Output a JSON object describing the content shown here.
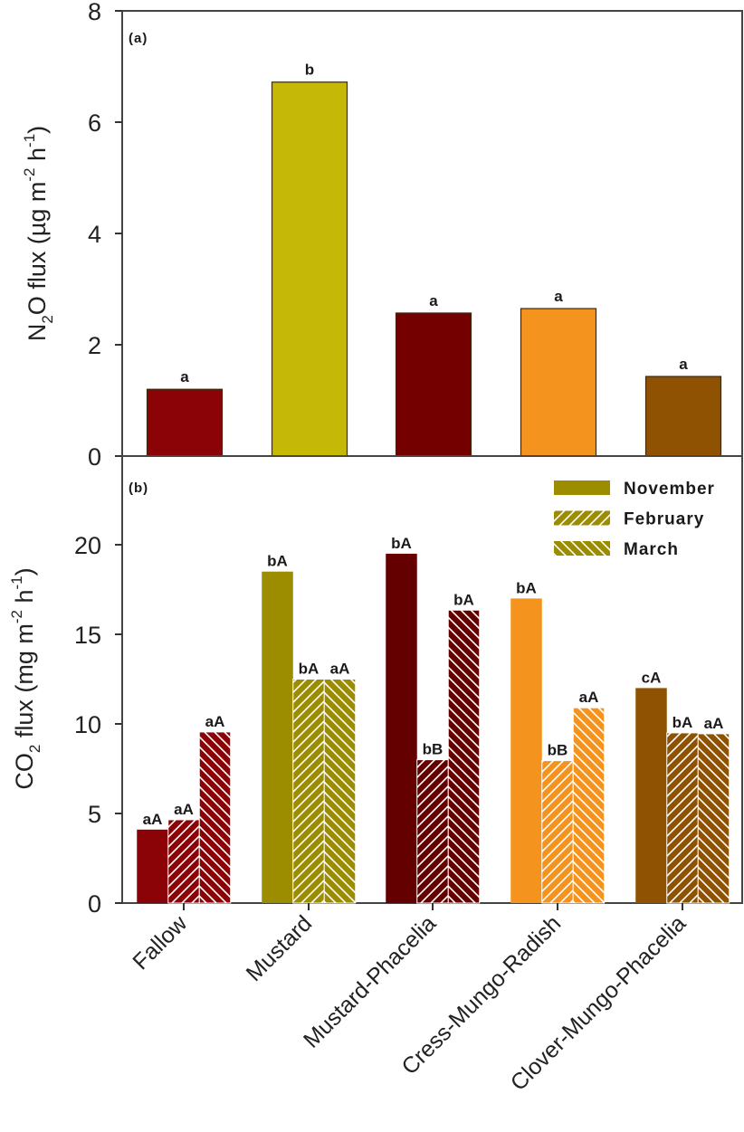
{
  "chart_data": [
    {
      "type": "bar",
      "panel_label": "(a)",
      "title": "",
      "xlabel": "",
      "ylabel": "N2O flux (µg m-2 h-1)",
      "ylabel_parts": {
        "pre": "N",
        "sub": "2",
        "mid": "O flux (µg m",
        "sup1": "-2",
        "mid2": " h",
        "sup2": "-1",
        "post": ")"
      },
      "ylim": [
        0,
        8
      ],
      "yticks": [
        0,
        2,
        4,
        6,
        8
      ],
      "grid": false,
      "categories": [
        "Fallow",
        "Mustard",
        "Mustard-Phacelia",
        "Cress-Mungo-Radish",
        "Clover-Mungo-Phacelia"
      ],
      "values": [
        1.2,
        6.72,
        2.57,
        2.65,
        1.43
      ],
      "labels": [
        "a",
        "b",
        "a",
        "a",
        "a"
      ],
      "colors": [
        "#8b0306",
        "#c5b806",
        "#740000",
        "#f5931f",
        "#8f5203"
      ]
    },
    {
      "type": "bar",
      "panel_label": "(b)",
      "title": "",
      "xlabel": "",
      "ylabel": "CO2 flux (mg m-2 h-1)",
      "ylabel_parts": {
        "pre": "CO",
        "sub": "2",
        "mid": " flux (mg m",
        "sup1": "-2",
        "mid2": " h",
        "sup2": "-1",
        "post": ")"
      },
      "ylim": [
        0,
        24
      ],
      "yticks": [
        0,
        5,
        10,
        15,
        20
      ],
      "grid": false,
      "legend_position": "top-right",
      "categories": [
        "Fallow",
        "Mustard",
        "Mustard-Phacelia",
        "Cress-Mungo-Radish",
        "Clover-Mungo-Phacelia"
      ],
      "series": [
        {
          "name": "November",
          "pattern": "solid",
          "values": [
            4.1,
            18.5,
            19.5,
            17.0,
            12.0
          ],
          "labels": [
            "aA",
            "bA",
            "bA",
            "bA",
            "cA"
          ]
        },
        {
          "name": "February",
          "pattern": "hatch-forward",
          "values": [
            4.65,
            12.5,
            8.0,
            7.95,
            9.5
          ],
          "labels": [
            "aA",
            "bA",
            "bB",
            "bB",
            "bA"
          ]
        },
        {
          "name": "March",
          "pattern": "hatch-backward",
          "values": [
            9.55,
            12.5,
            16.35,
            10.9,
            9.45
          ],
          "labels": [
            "aA",
            "aA",
            "bA",
            "aA",
            "aA"
          ]
        }
      ],
      "colors": [
        "#8b0306",
        "#9c8c00",
        "#640000",
        "#f5931f",
        "#8f5203"
      ],
      "legend_color": "#9c8c00"
    }
  ]
}
